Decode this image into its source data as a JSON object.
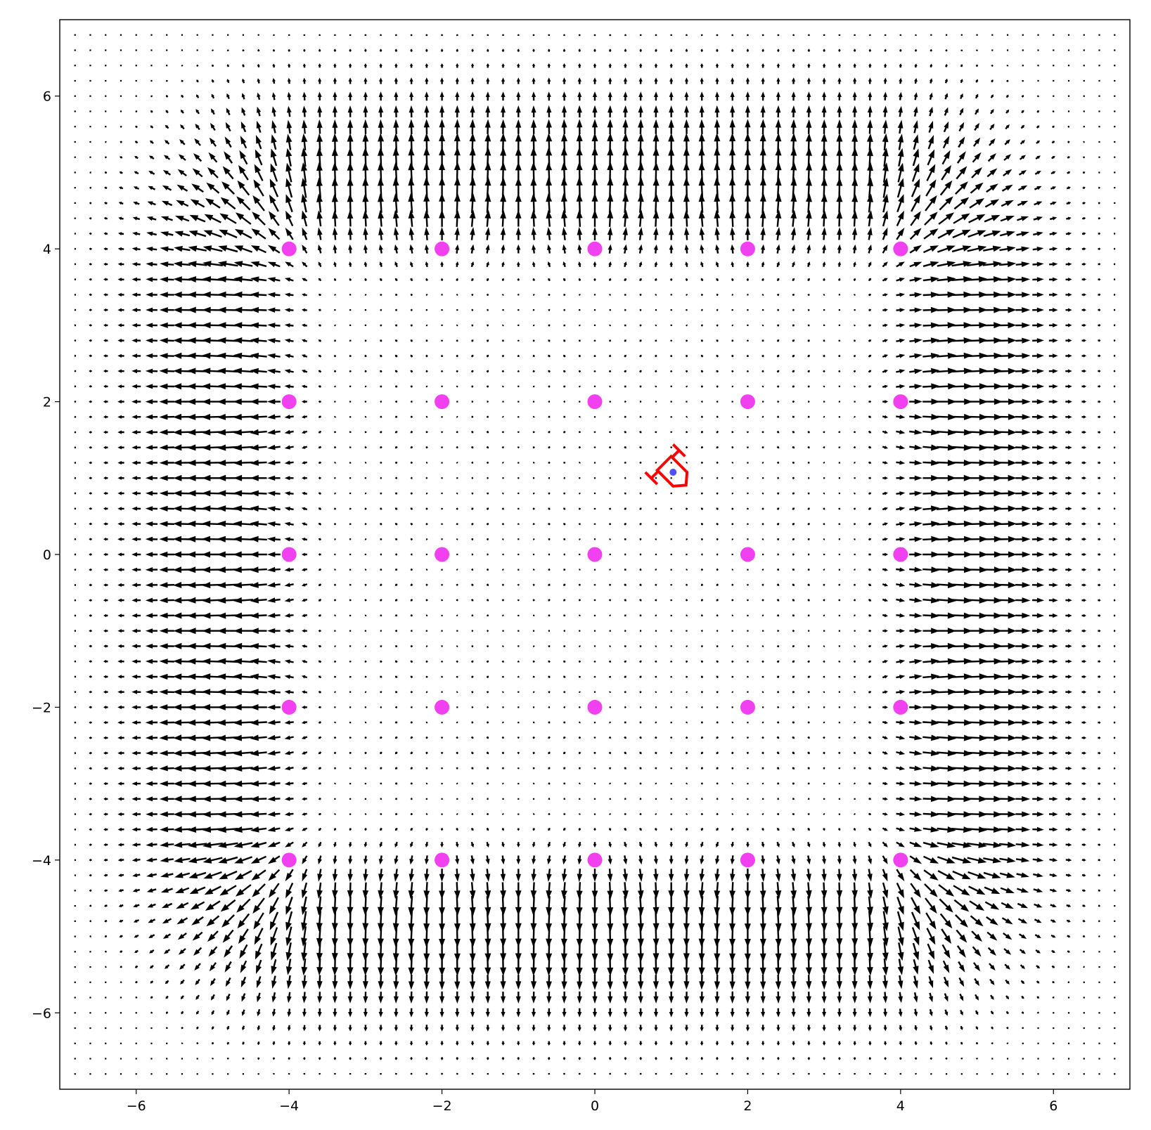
{
  "chart_data": {
    "type": "quiver",
    "title": "",
    "xlabel": "",
    "ylabel": "",
    "xlim": [
      -7,
      7
    ],
    "ylim": [
      -7,
      7
    ],
    "grid": false,
    "legend": "none",
    "x_ticks": [
      -6,
      -4,
      -2,
      0,
      2,
      4,
      6
    ],
    "y_ticks": [
      -6,
      -4,
      -2,
      0,
      2,
      4,
      6
    ],
    "x_tick_labels": [
      "−6",
      "−4",
      "−2",
      "0",
      "2",
      "4",
      "6"
    ],
    "y_tick_labels": [
      "−6",
      "−4",
      "−2",
      "0",
      "2",
      "4",
      "6"
    ],
    "quiver_grid": {
      "min": -6.8,
      "max": 6.8,
      "step": 0.2
    },
    "field": "sum of Gaussian sources centred on the marked points; each arrow shows the field direction and strength at its grid point",
    "sources": {
      "color": "#f040f0",
      "points": [
        [
          -4,
          4
        ],
        [
          -2,
          4
        ],
        [
          0,
          4
        ],
        [
          2,
          4
        ],
        [
          4,
          4
        ],
        [
          -4,
          2
        ],
        [
          -2,
          2
        ],
        [
          0,
          2
        ],
        [
          2,
          2
        ],
        [
          4,
          2
        ],
        [
          -4,
          0
        ],
        [
          -2,
          0
        ],
        [
          0,
          0
        ],
        [
          2,
          0
        ],
        [
          4,
          0
        ],
        [
          -4,
          -2
        ],
        [
          -2,
          -2
        ],
        [
          0,
          -2
        ],
        [
          2,
          -2
        ],
        [
          4,
          -2
        ],
        [
          -4,
          -4
        ],
        [
          -2,
          -4
        ],
        [
          0,
          -4
        ],
        [
          2,
          -4
        ],
        [
          4,
          -4
        ]
      ]
    },
    "ship": {
      "x": 1.05,
      "y": 1.05,
      "heading_deg": -45,
      "outline_color": "#ff0000",
      "center_color": "#4f4fff"
    },
    "arrow_color": "#000000"
  }
}
